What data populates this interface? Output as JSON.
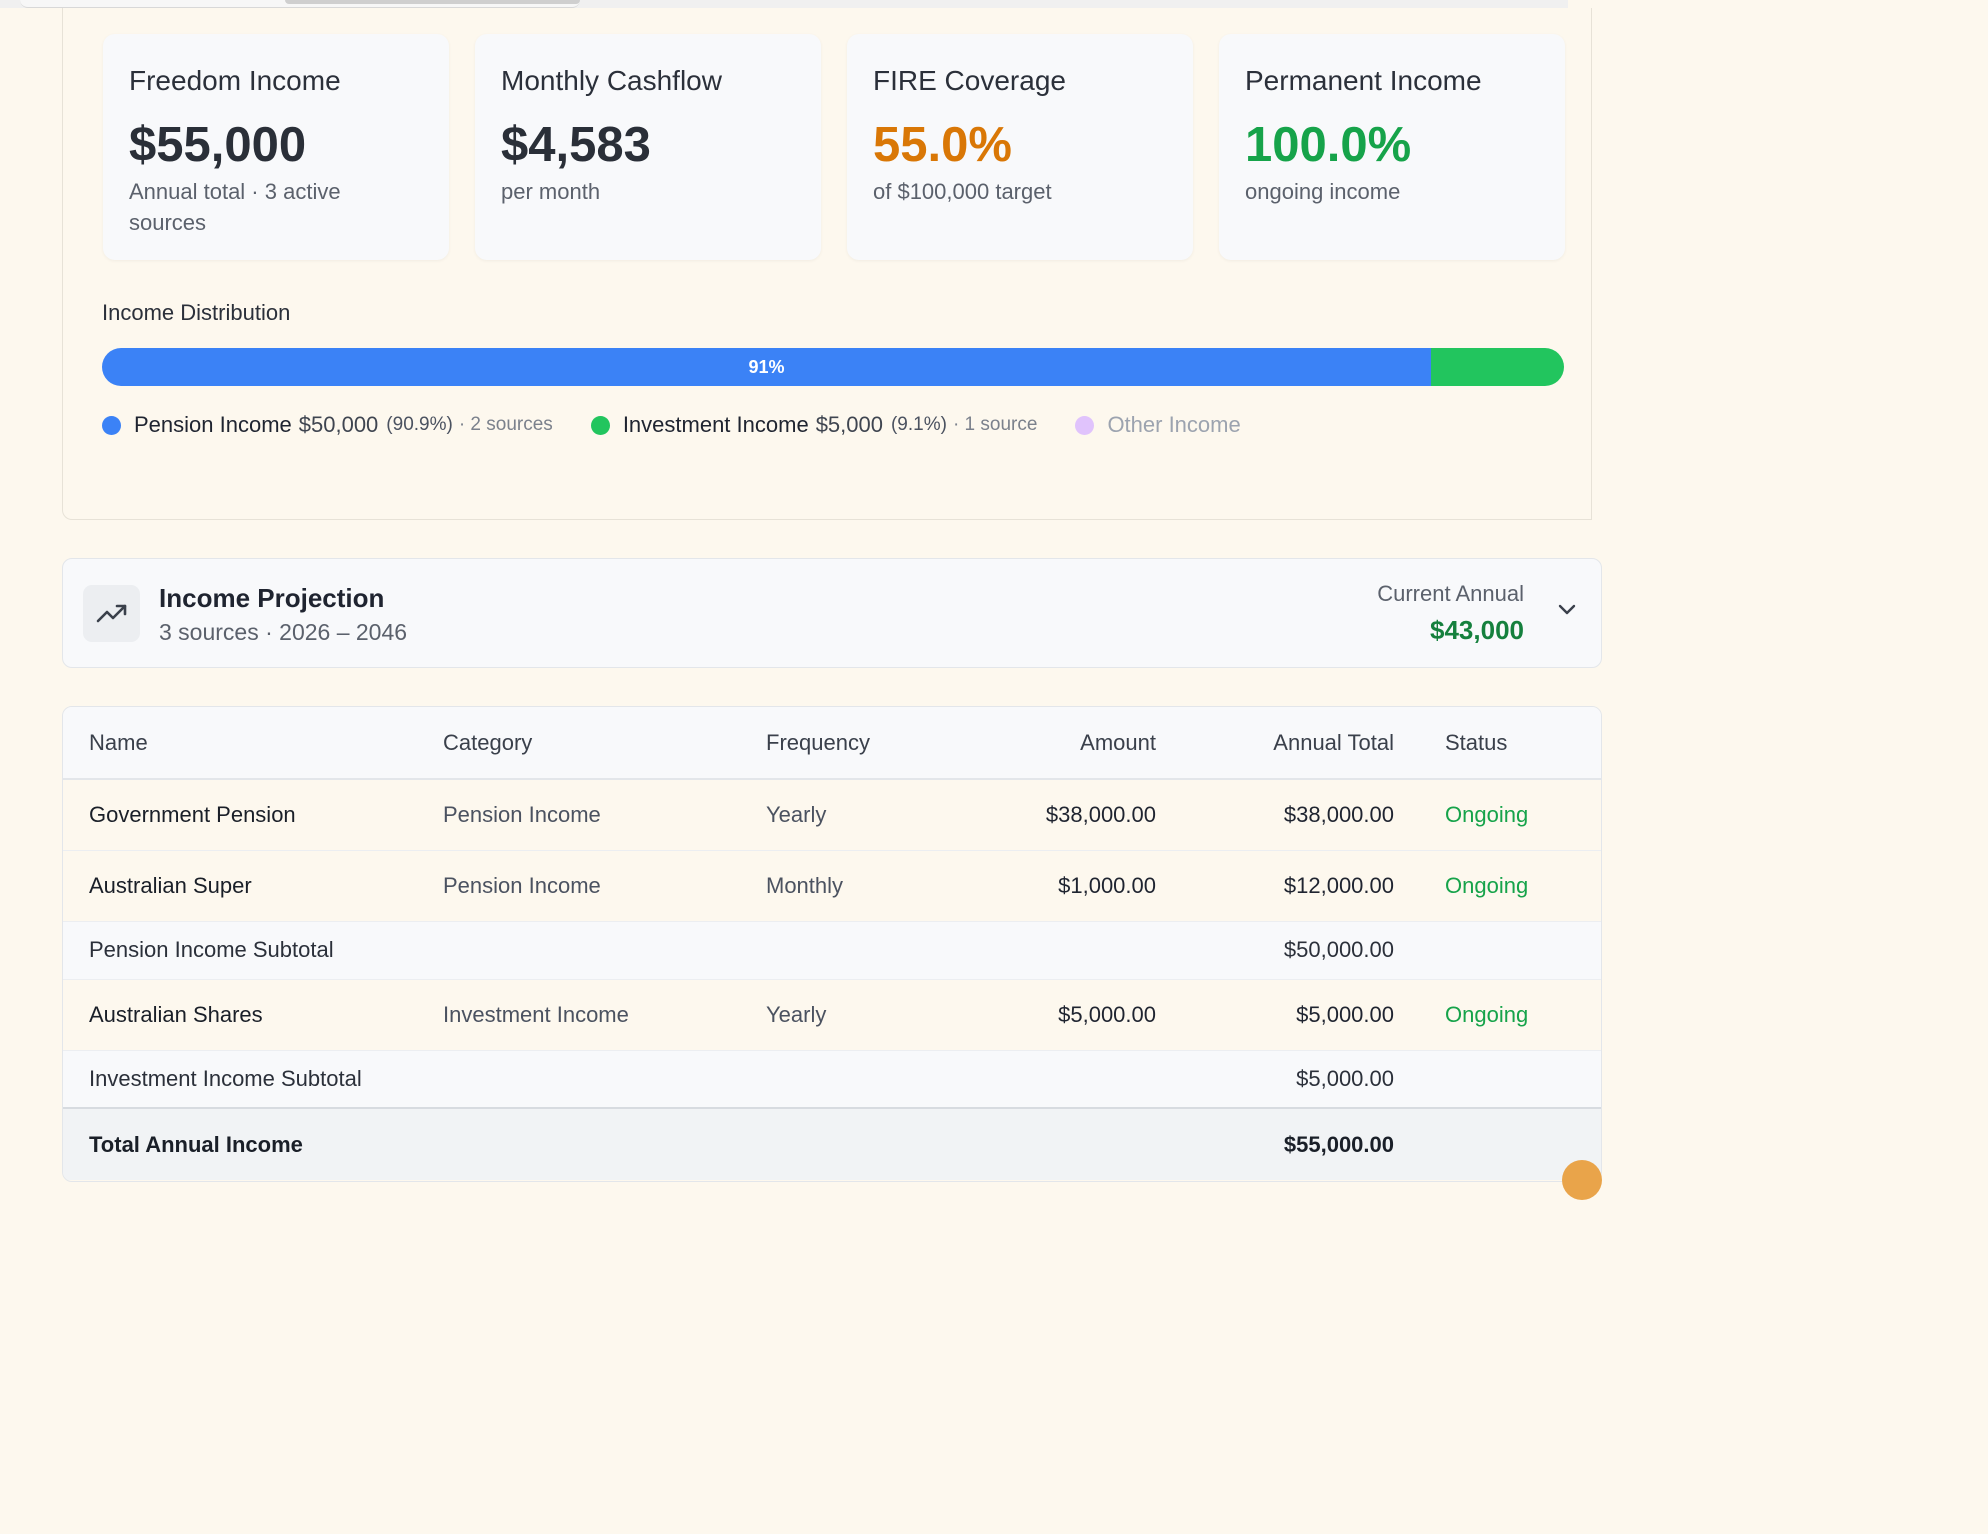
{
  "summary_cards": [
    {
      "title": "Freedom Income",
      "value": "$55,000",
      "sub": "Annual total · 3 active sources",
      "accent": "#2a2f38"
    },
    {
      "title": "Monthly Cashflow",
      "value": "$4,583",
      "sub": "per month",
      "accent": "#2a2f38"
    },
    {
      "title": "FIRE Coverage",
      "value": "55.0%",
      "sub": "of $100,000 target",
      "accent": "#d97706"
    },
    {
      "title": "Permanent Income",
      "value": "100.0%",
      "sub": "ongoing income",
      "accent": "#16a34a"
    }
  ],
  "distribution": {
    "title": "Income Distribution",
    "bar_label": "91%",
    "segments": [
      {
        "name": "Pension Income",
        "fraction": 0.909,
        "color": "#3b82f6"
      },
      {
        "name": "Investment Income",
        "fraction": 0.091,
        "color": "#22c55e"
      }
    ],
    "legend": [
      {
        "name": "Pension Income",
        "amount": "$50,000",
        "pct": "(90.9%)",
        "sources": "· 2 sources",
        "color": "#3b82f6"
      },
      {
        "name": "Investment Income",
        "amount": "$5,000",
        "pct": "(9.1%)",
        "sources": "· 1 source",
        "color": "#22c55e"
      },
      {
        "name": "Other Income",
        "color": "#d8b4fe"
      }
    ]
  },
  "projection": {
    "title": "Income Projection",
    "subtitle": "3 sources · 2026 – 2046",
    "right_label": "Current Annual",
    "right_value": "$43,000"
  },
  "table": {
    "headers": {
      "name": "Name",
      "category": "Category",
      "frequency": "Frequency",
      "amount": "Amount",
      "annual": "Annual Total",
      "status": "Status"
    },
    "rows": [
      {
        "name": "Government Pension",
        "category": "Pension Income",
        "frequency": "Yearly",
        "amount": "$38,000.00",
        "annual": "$38,000.00",
        "status": "Ongoing"
      },
      {
        "name": "Australian Super",
        "category": "Pension Income",
        "frequency": "Monthly",
        "amount": "$1,000.00",
        "annual": "$12,000.00",
        "status": "Ongoing"
      }
    ],
    "pension_subtotal": {
      "label": "Pension Income Subtotal",
      "annual": "$50,000.00"
    },
    "rows2": [
      {
        "name": "Australian Shares",
        "category": "Investment Income",
        "frequency": "Yearly",
        "amount": "$5,000.00",
        "annual": "$5,000.00",
        "status": "Ongoing"
      }
    ],
    "investment_subtotal": {
      "label": "Investment Income Subtotal",
      "annual": "$5,000.00"
    },
    "total": {
      "label": "Total Annual Income",
      "annual": "$55,000.00"
    }
  }
}
